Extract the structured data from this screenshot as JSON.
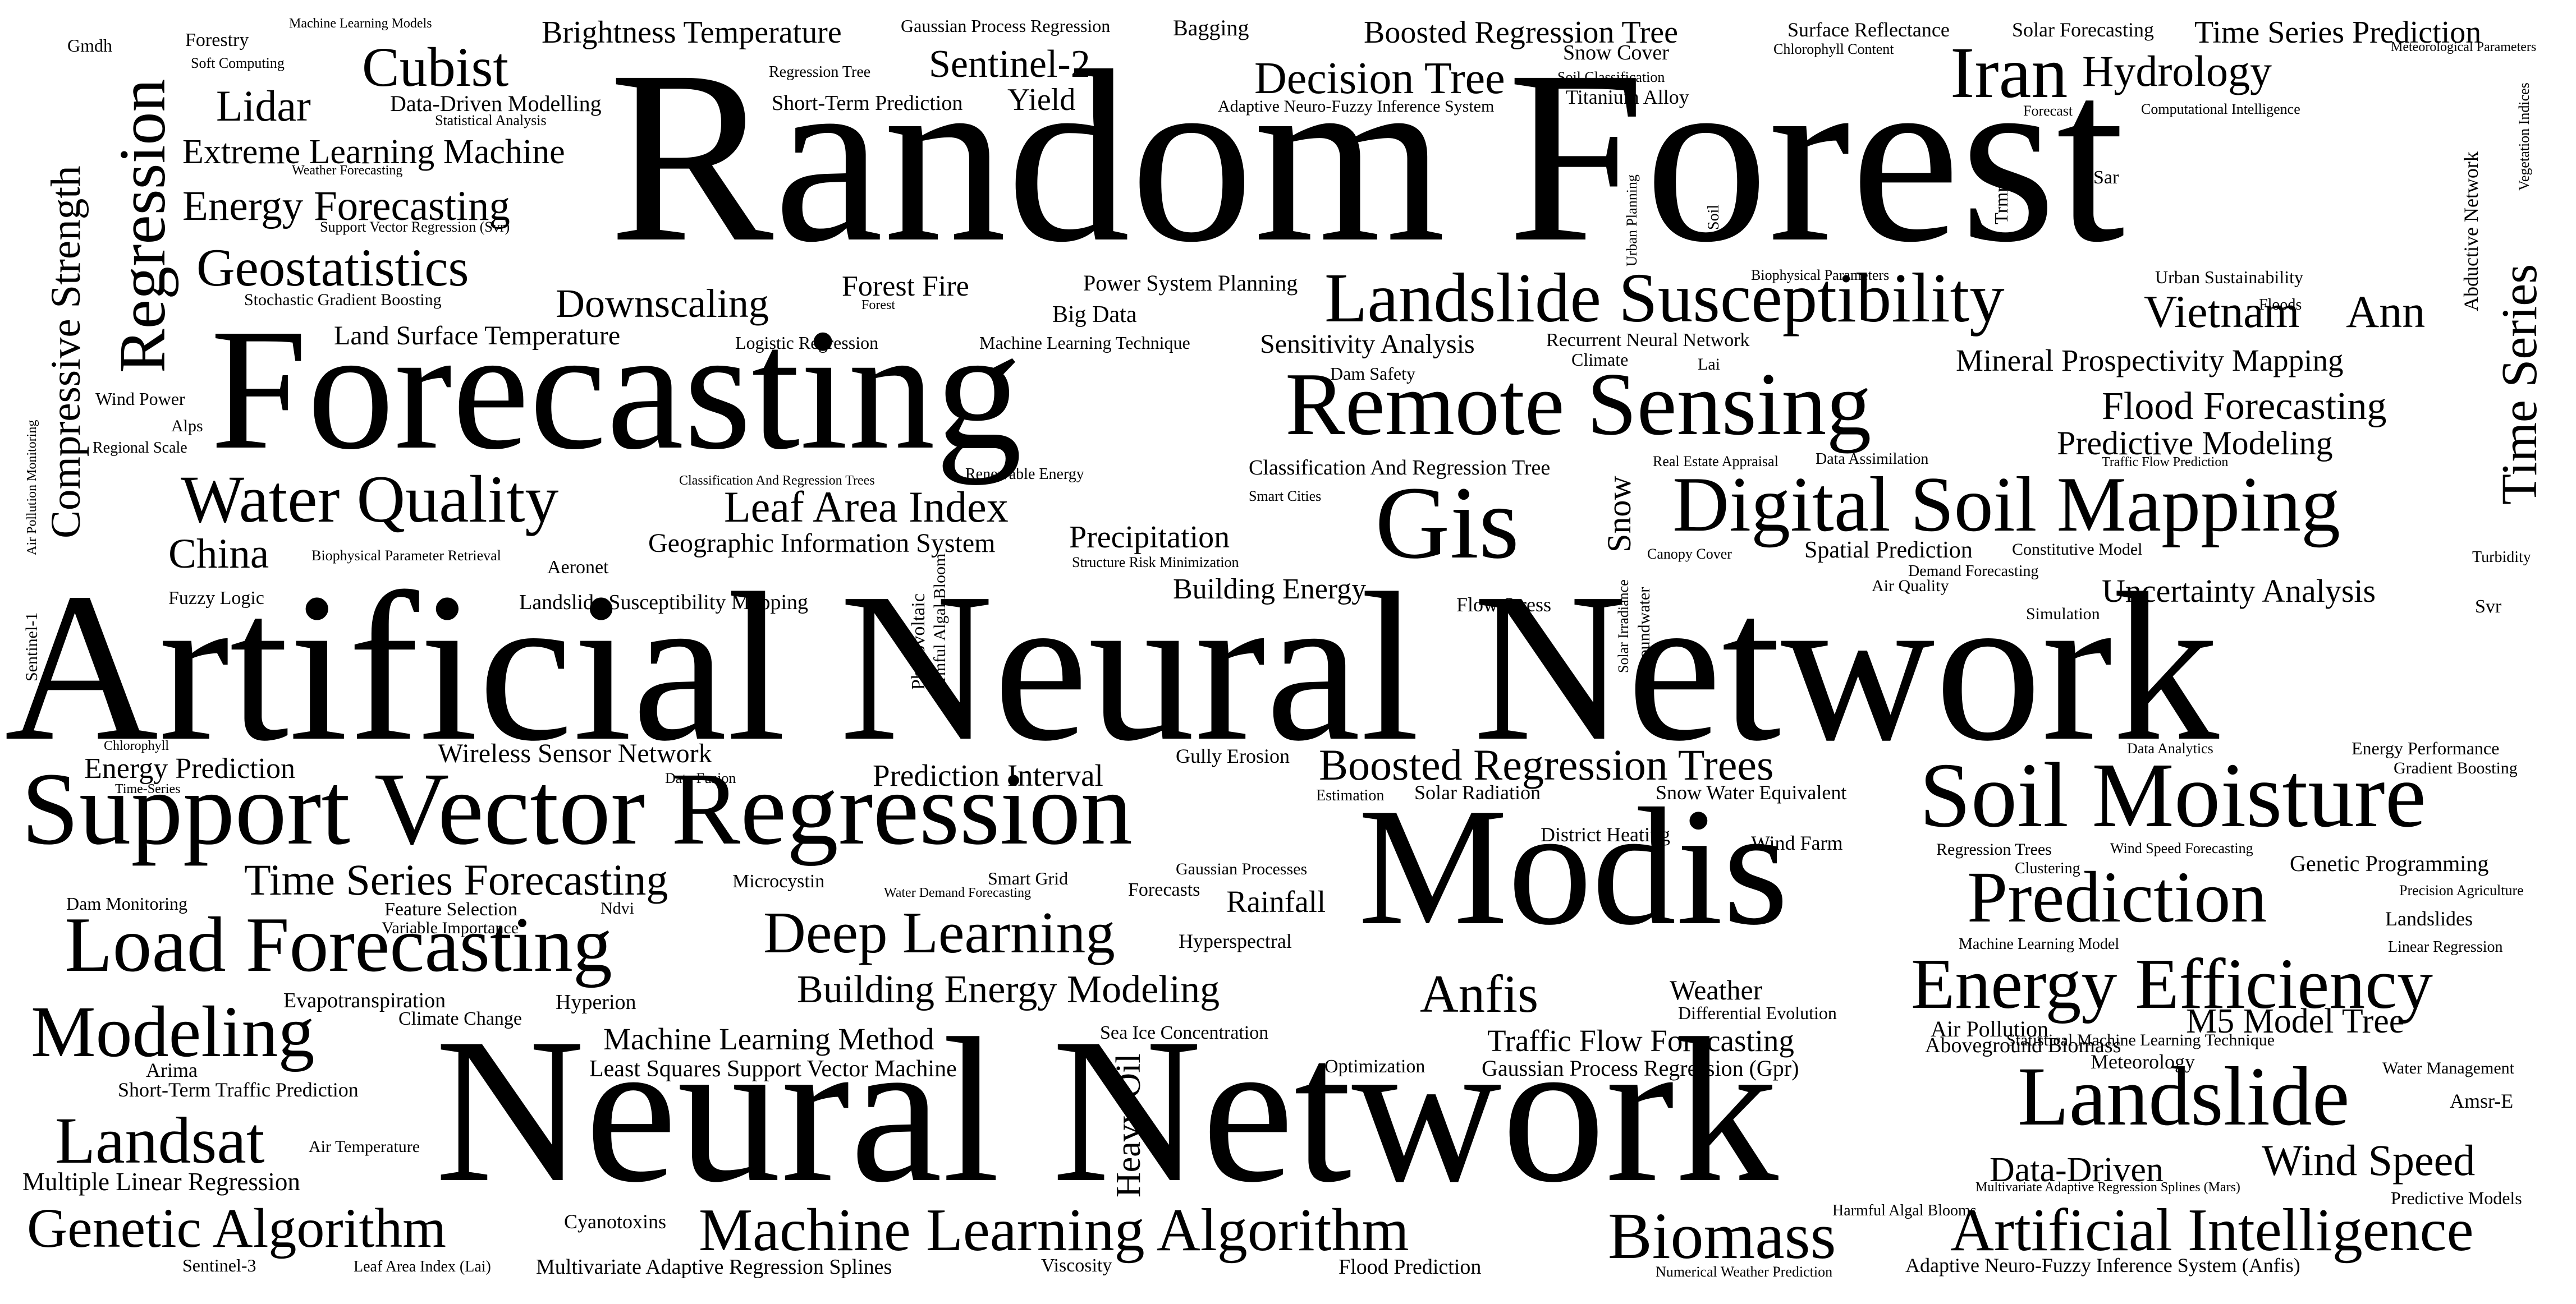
{
  "cloud": {
    "text_color": "#000000",
    "background": "#ffffff",
    "words": [
      {
        "text": "Random Forest"
      },
      {
        "text": "Artificial Neural Network"
      },
      {
        "text": "Neural Network"
      },
      {
        "text": "Forecasting"
      },
      {
        "text": "Modis"
      },
      {
        "text": "Support Vector Regression"
      },
      {
        "text": "Gis"
      },
      {
        "text": "Remote Sensing"
      },
      {
        "text": "Digital Soil Mapping"
      },
      {
        "text": "Soil Moisture"
      },
      {
        "text": "Landslide Susceptibility"
      },
      {
        "text": "Load Forecasting"
      },
      {
        "text": "Landslide"
      },
      {
        "text": "Prediction"
      },
      {
        "text": "Energy Efficiency"
      },
      {
        "text": "Machine Learning Algorithm"
      },
      {
        "text": "Artificial Intelligence"
      },
      {
        "text": "Biomass"
      },
      {
        "text": "Landsat"
      },
      {
        "text": "Genetic Algorithm"
      },
      {
        "text": "Modeling"
      },
      {
        "text": "Water Quality"
      },
      {
        "text": "Deep Learning"
      },
      {
        "text": "Iran"
      },
      {
        "text": "Decision Tree"
      },
      {
        "text": "Cubist"
      },
      {
        "text": "Regression"
      },
      {
        "text": "Time Series"
      },
      {
        "text": "Compressive Strength"
      },
      {
        "text": "Geostatistics"
      },
      {
        "text": "Boosted Regression Trees"
      },
      {
        "text": "Hydrology"
      },
      {
        "text": "Time Series Forecasting"
      },
      {
        "text": "Leaf Area Index"
      },
      {
        "text": "Building Energy Modeling"
      },
      {
        "text": "Anfis"
      },
      {
        "text": "Vietnam"
      },
      {
        "text": "Ann"
      },
      {
        "text": "Flood Forecasting"
      },
      {
        "text": "Wind Speed"
      },
      {
        "text": "Energy Forecasting"
      },
      {
        "text": "Lidar"
      },
      {
        "text": "China"
      },
      {
        "text": "Downscaling"
      },
      {
        "text": "Sentinel-2"
      },
      {
        "text": "Extreme Learning Machine"
      },
      {
        "text": "Brightness Temperature"
      },
      {
        "text": "Boosted Regression Tree"
      },
      {
        "text": "Heavy Oil"
      },
      {
        "text": "Data-Driven"
      },
      {
        "text": "M5 Model Tree"
      },
      {
        "text": "Uncertainty Analysis"
      },
      {
        "text": "Predictive Modeling"
      },
      {
        "text": "Mineral Prospectivity Mapping"
      },
      {
        "text": "Time Series Prediction"
      },
      {
        "text": "Precipitation"
      },
      {
        "text": "Machine Learning Method"
      },
      {
        "text": "Traffic Flow Forecasting"
      },
      {
        "text": "Energy Prediction"
      },
      {
        "text": "Prediction Interval"
      },
      {
        "text": "Rainfall"
      },
      {
        "text": "Building Energy"
      },
      {
        "text": "Wireless Sensor Network"
      },
      {
        "text": "Geographic Information System"
      },
      {
        "text": "Sensitivity Analysis"
      },
      {
        "text": "Land Surface Temperature"
      },
      {
        "text": "Forest Fire"
      },
      {
        "text": "Yield"
      },
      {
        "text": "Multiple Linear Regression"
      },
      {
        "text": "Snow"
      },
      {
        "text": "Weather"
      },
      {
        "text": "Big Data"
      },
      {
        "text": "Genetic Programming"
      },
      {
        "text": "Spatial Prediction"
      },
      {
        "text": "Least Squares Support Vector Machine"
      },
      {
        "text": "Short-Term Prediction"
      },
      {
        "text": "Data-Driven Modelling"
      },
      {
        "text": "Gaussian Process Regression (Gpr)"
      },
      {
        "text": "Power System Planning"
      },
      {
        "text": "Classification And Regression Tree"
      },
      {
        "text": "Short-Term Traffic Prediction"
      },
      {
        "text": "Evapotranspiration"
      },
      {
        "text": "Air Pollution"
      },
      {
        "text": "Aboveground Biomass"
      },
      {
        "text": "Meteorology"
      },
      {
        "text": "Multivariate Adaptive Regression Splines"
      },
      {
        "text": "Landslide Susceptibility Mapping"
      },
      {
        "text": "Snow Cover"
      },
      {
        "text": "Titanium Alloy"
      },
      {
        "text": "Adaptive Neuro-Fuzzy Inference System (Anfis)"
      },
      {
        "text": "Flood Prediction"
      },
      {
        "text": "Gully Erosion"
      },
      {
        "text": "Snow Water Equivalent"
      },
      {
        "text": "Solar Radiation"
      },
      {
        "text": "District Heating"
      },
      {
        "text": "Wind Farm"
      },
      {
        "text": "Flow Stress"
      },
      {
        "text": "Hyperspectral"
      },
      {
        "text": "Hyperion"
      },
      {
        "text": "Climate Change"
      },
      {
        "text": "Microcystin"
      },
      {
        "text": "Smart Grid"
      },
      {
        "text": "Forecasts"
      },
      {
        "text": "Cyanotoxins"
      },
      {
        "text": "Viscosity"
      },
      {
        "text": "Sea Ice Concentration"
      },
      {
        "text": "Optimization"
      },
      {
        "text": "Differential Evolution"
      },
      {
        "text": "Air Temperature"
      },
      {
        "text": "Arima"
      },
      {
        "text": "Dam Monitoring"
      },
      {
        "text": "Feature Selection"
      },
      {
        "text": "Variable Importance"
      },
      {
        "text": "Ndvi"
      },
      {
        "text": "Fuzzy Logic"
      },
      {
        "text": "Aeronet"
      },
      {
        "text": "Wind Power"
      },
      {
        "text": "Alps"
      },
      {
        "text": "Regional Scale"
      },
      {
        "text": "Gmdh"
      },
      {
        "text": "Forestry"
      },
      {
        "text": "Soft Computing"
      },
      {
        "text": "Machine Learning Models"
      },
      {
        "text": "Gaussian Process Regression"
      },
      {
        "text": "Bagging"
      },
      {
        "text": "Surface Reflectance"
      },
      {
        "text": "Solar Forecasting"
      },
      {
        "text": "Chlorophyll Content"
      },
      {
        "text": "Meteorological Parameters"
      },
      {
        "text": "Regression Tree"
      },
      {
        "text": "Soil Classification"
      },
      {
        "text": "Adaptive Neuro-Fuzzy Inference System"
      },
      {
        "text": "Forecast"
      },
      {
        "text": "Computational Intelligence"
      },
      {
        "text": "Statistical Analysis"
      },
      {
        "text": "Weather Forecasting"
      },
      {
        "text": "Support Vector Regression (Svr)"
      },
      {
        "text": "Stochastic Gradient Boosting"
      },
      {
        "text": "Forest"
      },
      {
        "text": "Logistic Regression"
      },
      {
        "text": "Machine Learning Technique"
      },
      {
        "text": "Recurrent Neural Network"
      },
      {
        "text": "Climate"
      },
      {
        "text": "Dam Safety"
      },
      {
        "text": "Lai"
      },
      {
        "text": "Biophysical Parameters"
      },
      {
        "text": "Urban Sustainability"
      },
      {
        "text": "Floods"
      },
      {
        "text": "Sar"
      },
      {
        "text": "Trmm"
      },
      {
        "text": "Soil"
      },
      {
        "text": "Urban Planning"
      },
      {
        "text": "Abductive Network"
      },
      {
        "text": "Vegetation Indices"
      },
      {
        "text": "Air Pollution Monitoring"
      },
      {
        "text": "Classification And Regression Trees"
      },
      {
        "text": "Renewable Energy"
      },
      {
        "text": "Smart Cities"
      },
      {
        "text": "Real Estate Appraisal"
      },
      {
        "text": "Data Assimilation"
      },
      {
        "text": "Traffic Flow Prediction"
      },
      {
        "text": "Biophysical Parameter Retrieval"
      },
      {
        "text": "Structure Risk Minimization"
      },
      {
        "text": "Canopy Cover"
      },
      {
        "text": "Constitutive Model"
      },
      {
        "text": "Demand Forecasting"
      },
      {
        "text": "Air Quality"
      },
      {
        "text": "Simulation"
      },
      {
        "text": "Turbidity"
      },
      {
        "text": "Svr"
      },
      {
        "text": "Sentinel-1"
      },
      {
        "text": "Photovoltaic"
      },
      {
        "text": "Harmful Algal Bloom"
      },
      {
        "text": "Solar Irradiance"
      },
      {
        "text": "Groundwater"
      },
      {
        "text": "Chlorophyll"
      },
      {
        "text": "Time-Series"
      },
      {
        "text": "Data Fusion"
      },
      {
        "text": "Estimation"
      },
      {
        "text": "Data Analytics"
      },
      {
        "text": "Energy Performance"
      },
      {
        "text": "Gradient Boosting"
      },
      {
        "text": "Regression Trees"
      },
      {
        "text": "Wind Speed Forecasting"
      },
      {
        "text": "Clustering"
      },
      {
        "text": "Precision Agriculture"
      },
      {
        "text": "Landslides"
      },
      {
        "text": "Machine Learning Model"
      },
      {
        "text": "Linear Regression"
      },
      {
        "text": "Gaussian Processes"
      },
      {
        "text": "Water Demand Forecasting"
      },
      {
        "text": "Statistical Machine Learning Technique"
      },
      {
        "text": "Water Management"
      },
      {
        "text": "Amsr-E"
      },
      {
        "text": "Multivariate Adaptive Regression Splines (Mars)"
      },
      {
        "text": "Harmful Algal Blooms"
      },
      {
        "text": "Predictive Models"
      },
      {
        "text": "Numerical Weather Prediction"
      },
      {
        "text": "Sentinel-3"
      },
      {
        "text": "Leaf Area Index (Lai)"
      }
    ]
  }
}
